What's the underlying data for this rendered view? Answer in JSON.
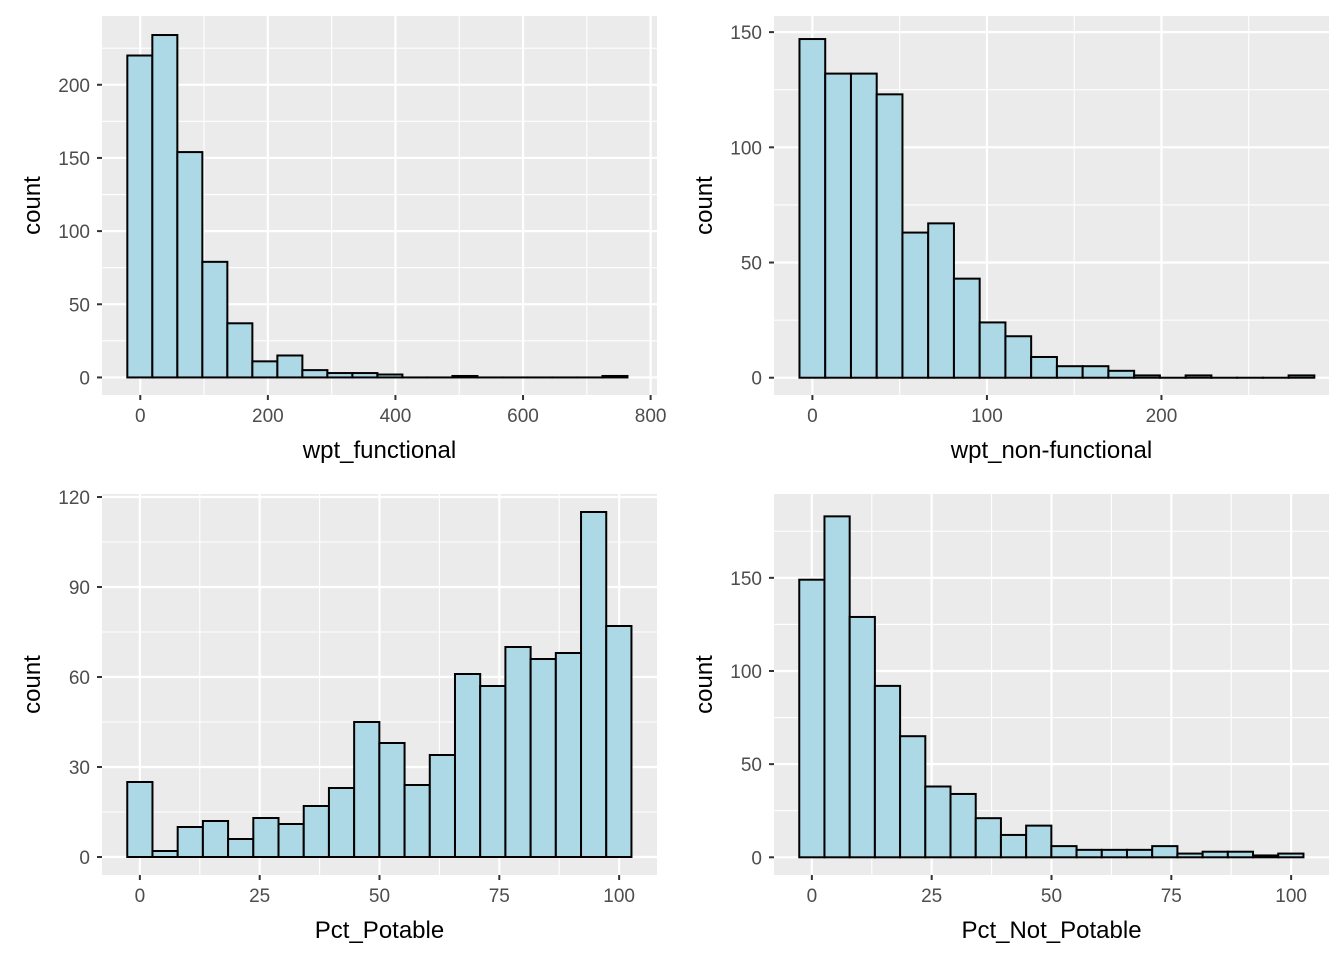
{
  "colors": {
    "panel_bg": "#EBEBEB",
    "grid": "#FFFFFF",
    "bar_fill": "#ADD8E6",
    "bar_stroke": "#000000",
    "tick_text": "#4D4D4D"
  },
  "chart_data": [
    {
      "type": "bar",
      "subtype": "histogram",
      "title": "",
      "xlabel": "wpt_functional",
      "ylabel": "count",
      "bin_start": -20.3,
      "bin_width": 39.2,
      "values": [
        220,
        234,
        154,
        79,
        37,
        11,
        15,
        5,
        3,
        3,
        2,
        0,
        0,
        1,
        0,
        0,
        0,
        0,
        0,
        1
      ],
      "xlim": [
        -60,
        810
      ],
      "ylim": [
        -12,
        247
      ],
      "xticks": [
        0,
        200,
        400,
        600,
        800
      ],
      "xtick_labels": [
        "0",
        "200",
        "400",
        "600",
        "800"
      ],
      "yticks": [
        0,
        50,
        100,
        150,
        200
      ],
      "ytick_labels": [
        "0",
        "50",
        "100",
        "150",
        "200"
      ],
      "grid": true
    },
    {
      "type": "bar",
      "subtype": "histogram",
      "title": "",
      "xlabel": "wpt_non-functional",
      "ylabel": "count",
      "bin_start": -7.4,
      "bin_width": 14.75,
      "values": [
        147,
        132,
        132,
        123,
        63,
        67,
        43,
        24,
        18,
        9,
        5,
        5,
        3,
        1,
        0,
        1,
        0,
        0,
        0,
        1
      ],
      "xlim": [
        -22,
        296
      ],
      "ylim": [
        -7.5,
        157
      ],
      "xticks": [
        0,
        100,
        200
      ],
      "xtick_labels": [
        "0",
        "100",
        "200"
      ],
      "yticks": [
        0,
        50,
        100,
        150
      ],
      "ytick_labels": [
        "0",
        "50",
        "100",
        "150"
      ],
      "grid": true
    },
    {
      "type": "bar",
      "subtype": "histogram",
      "title": "",
      "xlabel": "Pct_Potable",
      "ylabel": "count",
      "bin_start": -2.63,
      "bin_width": 5.26,
      "values": [
        25,
        2,
        10,
        12,
        6,
        13,
        11,
        17,
        23,
        45,
        38,
        24,
        34,
        61,
        57,
        70,
        66,
        68,
        115,
        77
      ],
      "xlim": [
        -7.9,
        107.9
      ],
      "ylim": [
        -6,
        121
      ],
      "xticks": [
        0,
        25,
        50,
        75,
        100
      ],
      "xtick_labels": [
        "0",
        "25",
        "50",
        "75",
        "100"
      ],
      "yticks": [
        0,
        30,
        60,
        90,
        120
      ],
      "ytick_labels": [
        "0",
        "30",
        "60",
        "90",
        "120"
      ],
      "grid": true
    },
    {
      "type": "bar",
      "subtype": "histogram",
      "title": "",
      "xlabel": "Pct_Not_Potable",
      "ylabel": "count",
      "bin_start": -2.63,
      "bin_width": 5.26,
      "values": [
        149,
        183,
        129,
        92,
        65,
        38,
        34,
        21,
        12,
        17,
        6,
        4,
        4,
        4,
        6,
        2,
        3,
        3,
        1,
        2
      ],
      "xlim": [
        -7.9,
        107.9
      ],
      "ylim": [
        -9.5,
        195
      ],
      "xticks": [
        0,
        25,
        50,
        75,
        100
      ],
      "xtick_labels": [
        "0",
        "25",
        "50",
        "75",
        "100"
      ],
      "yticks": [
        0,
        50,
        100,
        150
      ],
      "ytick_labels": [
        "0",
        "50",
        "100",
        "150"
      ],
      "grid": true
    }
  ]
}
